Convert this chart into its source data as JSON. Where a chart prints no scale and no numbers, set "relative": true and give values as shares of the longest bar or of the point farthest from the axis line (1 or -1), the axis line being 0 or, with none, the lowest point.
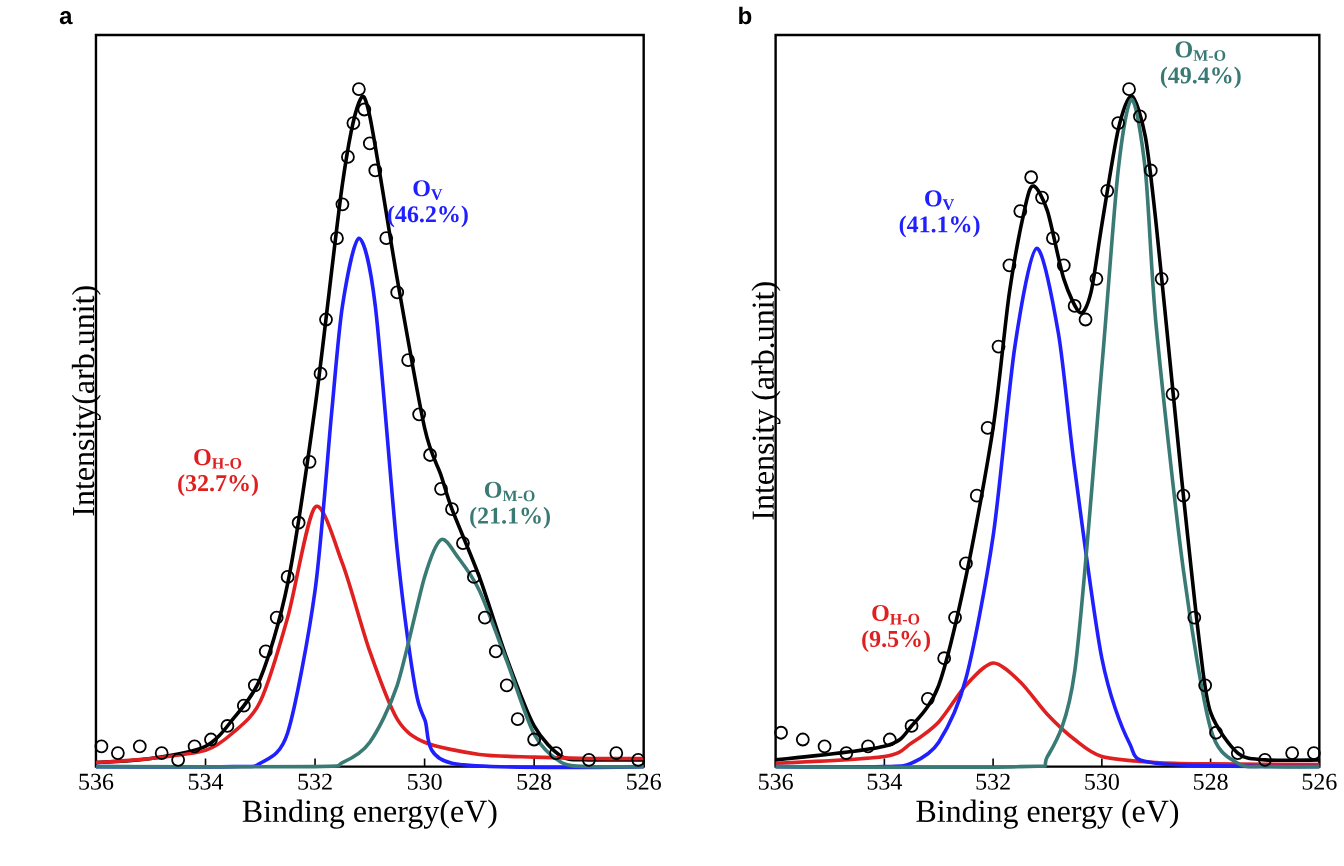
{
  "chart_data": [
    {
      "type": "line",
      "title": "a",
      "xlabel": "Binding energy(eV)",
      "ylabel": "Intensity(arb.unit)",
      "relative": true,
      "xlim": [
        536,
        526
      ],
      "xticks": [
        536,
        534,
        532,
        530,
        528,
        526
      ],
      "grid": false,
      "series": [
        {
          "type": "scatter",
          "marker": "circle",
          "color": "#000000",
          "x": [
            535.9,
            535.6,
            535.2,
            534.8,
            534.5,
            534.2,
            533.9,
            533.6,
            533.3,
            533.1,
            532.9,
            532.7,
            532.5,
            532.3,
            532.1,
            531.9,
            531.8,
            531.6,
            531.5,
            531.4,
            531.3,
            531.2,
            531.1,
            531.0,
            530.9,
            530.7,
            530.5,
            530.3,
            530.1,
            529.9,
            529.7,
            529.5,
            529.3,
            529.1,
            528.9,
            528.7,
            528.5,
            528.3,
            528.0,
            527.6,
            527.0,
            526.5,
            526.1
          ],
          "values": [
            0.03,
            0.02,
            0.03,
            0.02,
            0.01,
            0.03,
            0.04,
            0.06,
            0.09,
            0.12,
            0.17,
            0.22,
            0.28,
            0.36,
            0.45,
            0.58,
            0.66,
            0.78,
            0.83,
            0.9,
            0.95,
            1.0,
            0.97,
            0.92,
            0.88,
            0.78,
            0.7,
            0.6,
            0.52,
            0.46,
            0.41,
            0.38,
            0.33,
            0.28,
            0.22,
            0.17,
            0.12,
            0.07,
            0.04,
            0.02,
            0.01,
            0.02,
            0.01
          ]
        },
        {
          "marker": "none",
          "color": "#000000",
          "x": [
            536,
            535,
            534,
            533.5,
            533,
            532.5,
            532,
            531.5,
            531.2,
            531,
            530.5,
            530,
            529.7,
            529.5,
            529,
            528.5,
            528,
            527.5,
            527,
            526
          ],
          "values": [
            0.006,
            0.012,
            0.03,
            0.07,
            0.13,
            0.27,
            0.53,
            0.86,
            0.98,
            0.96,
            0.72,
            0.5,
            0.43,
            0.38,
            0.28,
            0.16,
            0.06,
            0.015,
            0.01,
            0.01
          ]
        },
        {
          "marker": "none",
          "name": "O$_{H-O}$ (32.7%)",
          "color": "#e02020",
          "x": [
            536,
            535,
            534,
            533.5,
            533,
            532.5,
            532,
            531.5,
            531,
            530.5,
            530,
            529,
            528,
            527,
            526
          ],
          "values": [
            0.006,
            0.012,
            0.024,
            0.05,
            0.096,
            0.22,
            0.383,
            0.3,
            0.17,
            0.07,
            0.036,
            0.018,
            0.014,
            0.012,
            0.012
          ]
        },
        {
          "marker": "none",
          "name": "O$_{V}$ (46.2%)",
          "color": "#2020ff",
          "x": [
            536,
            533.5,
            533,
            532.5,
            532,
            531.7,
            531.5,
            531.2,
            530.9,
            530.5,
            530.2,
            530,
            529.5,
            526
          ],
          "values": [
            0,
            0,
            0.005,
            0.05,
            0.26,
            0.52,
            0.68,
            0.78,
            0.68,
            0.32,
            0.13,
            0.07,
            0.005,
            0
          ]
        },
        {
          "marker": "none",
          "name": "O$_{M-O}$ (21.1%)",
          "color": "#3a7a74",
          "x": [
            536,
            532,
            531.5,
            531,
            530.5,
            530,
            529.7,
            529.4,
            529,
            528.5,
            528,
            527.5,
            527,
            526
          ],
          "values": [
            0,
            0,
            0.006,
            0.036,
            0.12,
            0.28,
            0.335,
            0.31,
            0.26,
            0.156,
            0.048,
            0.006,
            0,
            0
          ]
        }
      ]
    },
    {
      "type": "line",
      "title": "b",
      "xlabel": "Binding energy (eV)",
      "ylabel": "Intensity (arb.unit)",
      "relative": true,
      "xlim": [
        536,
        526
      ],
      "xticks": [
        536,
        534,
        532,
        530,
        528,
        526
      ],
      "grid": false,
      "series": [
        {
          "type": "scatter",
          "marker": "circle",
          "color": "#000000",
          "x": [
            535.9,
            535.5,
            535.1,
            534.7,
            534.3,
            533.9,
            533.5,
            533.2,
            532.9,
            532.7,
            532.5,
            532.3,
            532.1,
            531.9,
            531.7,
            531.5,
            531.3,
            531.1,
            530.9,
            530.7,
            530.5,
            530.3,
            530.1,
            529.9,
            529.7,
            529.5,
            529.3,
            529.1,
            528.9,
            528.7,
            528.5,
            528.3,
            528.1,
            527.9,
            527.5,
            527.0,
            526.5,
            526.1
          ],
          "values": [
            0.05,
            0.04,
            0.03,
            0.02,
            0.03,
            0.04,
            0.06,
            0.1,
            0.16,
            0.22,
            0.3,
            0.4,
            0.5,
            0.62,
            0.74,
            0.82,
            0.87,
            0.84,
            0.78,
            0.74,
            0.68,
            0.66,
            0.72,
            0.85,
            0.95,
            1.0,
            0.96,
            0.88,
            0.72,
            0.55,
            0.4,
            0.22,
            0.12,
            0.05,
            0.02,
            0.01,
            0.02,
            0.02
          ]
        },
        {
          "marker": "none",
          "color": "#000000",
          "x": [
            536,
            534,
            533.5,
            533,
            532.5,
            532,
            531.7,
            531.4,
            531.25,
            531,
            530.7,
            530.4,
            530.2,
            530,
            529.7,
            529.45,
            529.2,
            529,
            528.7,
            528.5,
            528.2,
            528,
            527.5,
            527,
            526
          ],
          "values": [
            0.01,
            0.03,
            0.06,
            0.12,
            0.28,
            0.5,
            0.7,
            0.83,
            0.857,
            0.82,
            0.72,
            0.67,
            0.7,
            0.8,
            0.94,
            0.99,
            0.93,
            0.8,
            0.56,
            0.4,
            0.18,
            0.08,
            0.02,
            0.01,
            0.01
          ]
        },
        {
          "marker": "none",
          "name": "O$_{H-O}$ (9.5%)",
          "color": "#e02020",
          "x": [
            536,
            534,
            533.5,
            533,
            532.5,
            532,
            531.5,
            531,
            530.5,
            530,
            529,
            528,
            526
          ],
          "values": [
            0.005,
            0.015,
            0.035,
            0.066,
            0.12,
            0.153,
            0.125,
            0.077,
            0.04,
            0.015,
            0.006,
            0.004,
            0.003
          ]
        },
        {
          "marker": "none",
          "name": "O$_{V}$ (41.1%)",
          "color": "#2020ff",
          "x": [
            536,
            534,
            533.5,
            533,
            532.5,
            532,
            531.6,
            531.2,
            530.8,
            530.5,
            530,
            529.5,
            529,
            526
          ],
          "values": [
            0,
            0,
            0.005,
            0.036,
            0.13,
            0.34,
            0.62,
            0.765,
            0.64,
            0.44,
            0.16,
            0.036,
            0.005,
            0
          ]
        },
        {
          "marker": "none",
          "name": "O$_{M-O}$ (49.4%)",
          "color": "#3a7a74",
          "x": [
            536,
            531.5,
            531,
            530.5,
            530,
            529.7,
            529.45,
            529.2,
            529,
            528.5,
            528,
            527.5,
            527,
            526
          ],
          "values": [
            0,
            0,
            0.015,
            0.14,
            0.59,
            0.88,
            0.985,
            0.88,
            0.65,
            0.29,
            0.056,
            0.005,
            0,
            0
          ]
        }
      ]
    }
  ]
}
